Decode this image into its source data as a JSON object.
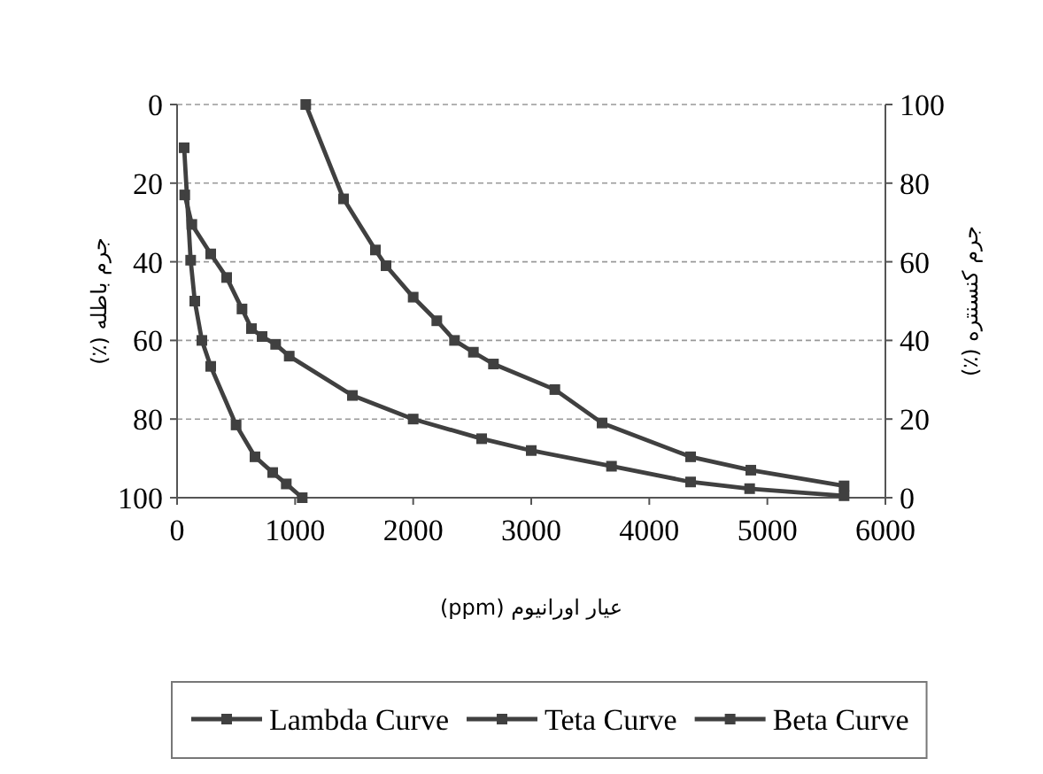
{
  "chart_data": {
    "type": "line",
    "xlabel": "عیار اورانیوم (ppm)",
    "ylabel": "جرم باطله (٪)",
    "y2label": "جرم کنسنتره (٪)",
    "xlim": [
      0,
      6000
    ],
    "xticks": [
      0,
      1000,
      2000,
      3000,
      4000,
      5000,
      6000
    ],
    "ylim": [
      100,
      0
    ],
    "yticks": [
      0,
      20,
      40,
      60,
      80,
      100
    ],
    "y2lim": [
      0,
      100
    ],
    "y2ticks": [
      0,
      20,
      40,
      60,
      80,
      100
    ],
    "grid": "y",
    "legend": "bottom",
    "marker": "square",
    "line_style": "solid",
    "series": [
      {
        "name": "Lambda Curve",
        "color": "#404040",
        "x": [
          1090,
          1410,
          1680,
          1770,
          2000,
          2200,
          2350,
          2510,
          2680,
          3200,
          3600,
          4350,
          4860,
          5650
        ],
        "values": [
          0,
          24,
          37,
          41,
          49,
          55,
          60,
          63,
          66,
          72.5,
          81,
          89.6,
          93,
          97
        ]
      },
      {
        "name": "Teta Curve",
        "color": "#404040",
        "x": [
          65,
          125,
          285,
          420,
          550,
          630,
          720,
          835,
          950,
          1485,
          2000,
          2580,
          3000,
          3680,
          4350,
          4850,
          5650
        ],
        "values": [
          23,
          30.5,
          38,
          44,
          52,
          57,
          59,
          61,
          64,
          74,
          80,
          85,
          88,
          92,
          96,
          97.7,
          99.5
        ]
      },
      {
        "name": "Beta Curve",
        "color": "#404040",
        "x": [
          60,
          115,
          150,
          210,
          285,
          500,
          660,
          810,
          925,
          1060
        ],
        "values": [
          11,
          39.6,
          50,
          60,
          66.6,
          81.5,
          89.6,
          93.6,
          96.5,
          100
        ]
      }
    ]
  }
}
